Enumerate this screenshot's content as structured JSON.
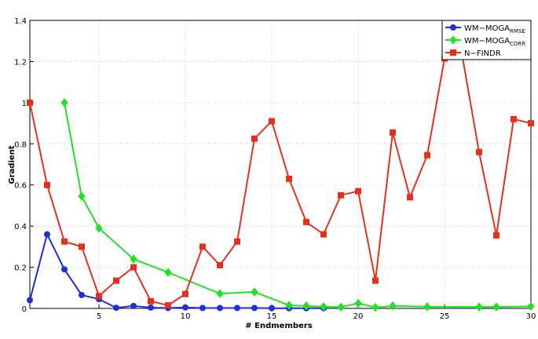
{
  "chart_data": {
    "type": "line",
    "xlabel": "# Endmembers",
    "ylabel": "Gradient",
    "xlim": [
      1,
      30
    ],
    "ylim": [
      0,
      1.4
    ],
    "xticks": [
      5,
      10,
      15,
      20,
      25,
      30
    ],
    "yticks": [
      0,
      0.2,
      0.4,
      0.6,
      0.8,
      1,
      1.2,
      1.4
    ],
    "grid": true,
    "legend": "upper right",
    "series": [
      {
        "name": "WM−MOGA",
        "name_sub": "RMSE",
        "color": "#1f2fd6",
        "marker": "circle",
        "x": [
          1,
          2,
          3,
          4,
          5,
          6,
          7,
          8,
          9,
          10,
          11,
          12,
          13,
          14,
          15,
          16,
          17,
          18
        ],
        "values": [
          0.04,
          0.36,
          0.19,
          0.065,
          0.045,
          0.003,
          0.012,
          0.004,
          0.002,
          0.005,
          0.002,
          0.002,
          0.002,
          0.002,
          0.001,
          0.001,
          0.001,
          0.001
        ]
      },
      {
        "name": "WM−MOGA",
        "name_sub": "CORR",
        "color": "#22e022",
        "marker": "diamond",
        "x": [
          3,
          4,
          5,
          7,
          9,
          12,
          14,
          16,
          17,
          18,
          19,
          20,
          21,
          22,
          24,
          27,
          28,
          30
        ],
        "values": [
          1.0,
          0.545,
          0.39,
          0.24,
          0.175,
          0.072,
          0.08,
          0.015,
          0.012,
          0.008,
          0.006,
          0.025,
          0.005,
          0.012,
          0.008,
          0.007,
          0.007,
          0.01
        ]
      },
      {
        "name": "N−FINDR",
        "color": "#e5301c",
        "marker": "square",
        "x": [
          1,
          2,
          3,
          4,
          5,
          6,
          7,
          8,
          9,
          10,
          11,
          12,
          13,
          14,
          15,
          16,
          17,
          18,
          19,
          20,
          21,
          22,
          23,
          24,
          25,
          26,
          27,
          28,
          29,
          30
        ],
        "values": [
          1.0,
          0.6,
          0.325,
          0.3,
          0.06,
          0.135,
          0.2,
          0.035,
          0.015,
          0.07,
          0.3,
          0.21,
          0.325,
          0.825,
          0.91,
          0.63,
          0.42,
          0.36,
          0.55,
          0.57,
          0.135,
          0.855,
          0.54,
          0.745,
          1.215,
          1.24,
          0.76,
          0.355,
          0.92,
          0.9
        ]
      }
    ]
  }
}
